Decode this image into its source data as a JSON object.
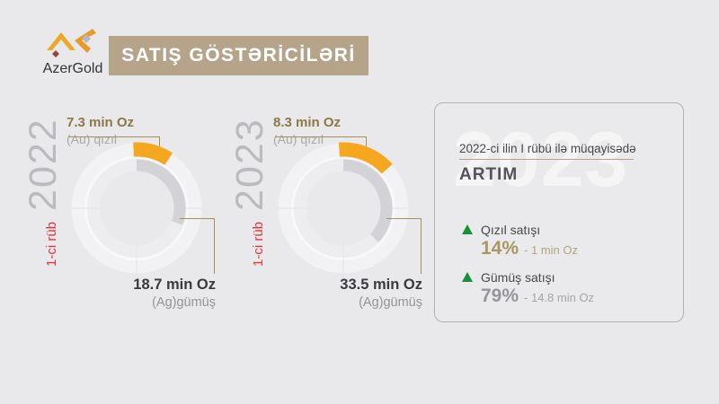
{
  "logo": {
    "name": "AzerGold"
  },
  "header": {
    "title": "SATIŞ GÖSTƏRİCİLƏRİ",
    "banner_color": "#b5a48a"
  },
  "chart_data": [
    {
      "type": "pie",
      "year": "2022",
      "period_label": "1-ci rüb",
      "gold": {
        "value": 7.3,
        "unit": "min Oz",
        "value_label": "7.3 min Oz",
        "series_label": "(Au) qızıl",
        "color": "#f5a71f",
        "start_angle": -3,
        "end_angle": 33,
        "ring": "outer"
      },
      "silver": {
        "value": 18.7,
        "unit": "min Oz",
        "value_label": "18.7 min Oz",
        "series_label": "(Ag)gümüş",
        "color": "#d3d2d6",
        "start_angle": 0,
        "end_angle": 110,
        "ring": "inner"
      }
    },
    {
      "type": "pie",
      "year": "2023",
      "period_label": "1-ci rüb",
      "gold": {
        "value": 8.3,
        "unit": "min Oz",
        "value_label": "8.3 min Oz",
        "series_label": "(Au) qızıl",
        "color": "#f5a71f",
        "start_angle": -4,
        "end_angle": 48,
        "ring": "outer"
      },
      "silver": {
        "value": 33.5,
        "unit": "min Oz",
        "value_label": "33.5 min Oz",
        "series_label": "(Ag)gümüş",
        "color": "#d3d2d6",
        "start_angle": 0,
        "end_angle": 134,
        "ring": "inner"
      }
    }
  ],
  "comparison_card": {
    "watermark": "2023",
    "subtitle": "2022-ci ilin I rübü ilə müqayisədə",
    "title": "ARTIM",
    "items": [
      {
        "label": "Qızıl satışı",
        "percent": "14%",
        "delta": "- 1 min Oz",
        "direction": "up",
        "percent_color": "#a8985e",
        "delta_color": "#b3a478"
      },
      {
        "label": "Gümüş satışı",
        "percent": "79%",
        "delta": "- 14.8 min Oz",
        "direction": "up",
        "percent_color": "#96959a",
        "delta_color": "#a4a3a7"
      }
    ]
  },
  "colors": {
    "background": "#e9e8eb",
    "gold_accent": "#f5a71f",
    "silver_accent": "#d3d2d6",
    "banner_tan": "#b5a48a",
    "period_red": "#e2343f",
    "growth_green": "#17913b",
    "callout_line": "#a39258"
  }
}
